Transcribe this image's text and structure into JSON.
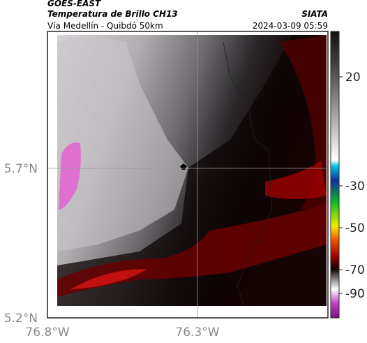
{
  "header": {
    "satellite": "GOES-EAST",
    "title": "Temperatura de Brillo CH13",
    "subtitle": "Vía Medellín - Quibdó 50km",
    "source": "SIATA",
    "timestamp": "2024-03-09 05:59"
  },
  "axes": {
    "y_labels": [
      "5.7°N",
      "5.2°N"
    ],
    "x_labels": [
      "76.8°W",
      "76.3°W"
    ]
  },
  "colorbar": {
    "labels": [
      20,
      -30,
      -50,
      -70,
      -90
    ]
  }
}
